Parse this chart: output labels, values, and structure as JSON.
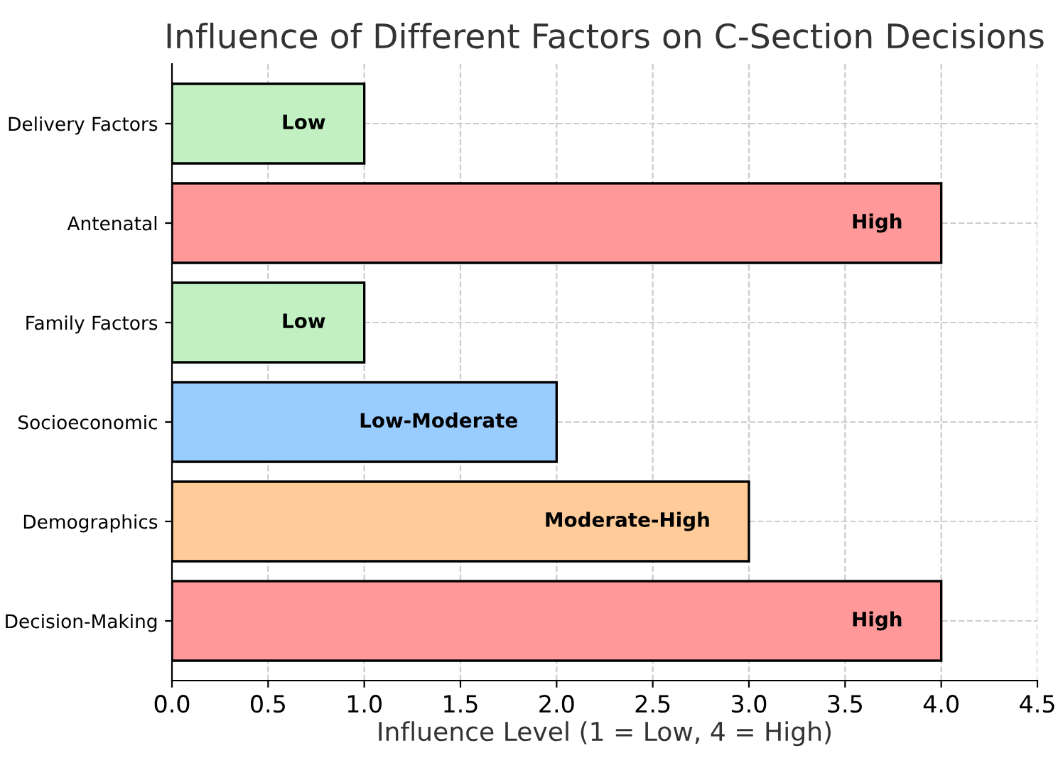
{
  "chart_data": {
    "type": "bar",
    "orientation": "horizontal",
    "title": "Influence of Different Factors on C-Section Decisions",
    "xlabel": "Influence Level (1 = Low, 4 = High)",
    "categories": [
      "Delivery Factors",
      "Antenatal",
      "Family Factors",
      "Socioeconomic",
      "Demographics",
      "Decision-Making"
    ],
    "values": [
      1,
      4,
      1,
      2,
      3,
      4
    ],
    "colors": [
      "#c2f0c2",
      "#ff9999",
      "#c2f0c2",
      "#99ccff",
      "#ffcc99",
      "#ff9999"
    ],
    "value_labels": [
      "Low",
      "High",
      "Low",
      "Low-Moderate",
      "Moderate-High",
      "High"
    ],
    "xlim": [
      0,
      4.5
    ],
    "xticks": [
      {
        "value": 0,
        "label": "0.0"
      },
      {
        "value": 0.5,
        "label": "0.5"
      },
      {
        "value": 1,
        "label": "1.0"
      },
      {
        "value": 1.5,
        "label": "1.5"
      },
      {
        "value": 2,
        "label": "2.0"
      },
      {
        "value": 2.5,
        "label": "2.5"
      },
      {
        "value": 3,
        "label": "3.0"
      },
      {
        "value": 3.5,
        "label": "3.5"
      },
      {
        "value": 4,
        "label": "4.0"
      },
      {
        "value": 4.5,
        "label": "4.5"
      }
    ],
    "grid": true
  }
}
